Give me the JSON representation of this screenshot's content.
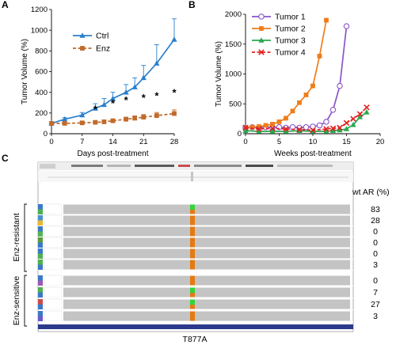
{
  "panel_labels": {
    "a": "A",
    "b": "B",
    "c": "C"
  },
  "chart_data": [
    {
      "type": "line",
      "panel": "A",
      "ylabel": "Tumor Volume (%)",
      "xlabel": "Days post-treatment",
      "xlim": [
        0,
        28
      ],
      "ylim": [
        0,
        1200
      ],
      "xticks": [
        0,
        7,
        14,
        21,
        28
      ],
      "yticks": [
        0,
        200,
        400,
        600,
        800,
        1000,
        1200
      ],
      "legend_position": "top-left",
      "series": [
        {
          "name": "Ctrl",
          "color": "#2b7fcb",
          "marker": "triangle",
          "dash": "solid",
          "x": [
            0,
            3,
            7,
            10,
            12,
            14,
            17,
            19,
            21,
            24,
            28
          ],
          "y": [
            100,
            140,
            180,
            245,
            280,
            340,
            400,
            450,
            540,
            680,
            910
          ],
          "err": [
            0,
            15,
            25,
            45,
            60,
            60,
            75,
            90,
            120,
            180,
            200
          ]
        },
        {
          "name": "Enz",
          "color": "#c06a2b",
          "marker": "square",
          "dash": "dashed",
          "x": [
            0,
            3,
            7,
            10,
            12,
            14,
            17,
            19,
            21,
            24,
            28
          ],
          "y": [
            100,
            100,
            105,
            110,
            115,
            125,
            140,
            150,
            160,
            175,
            195
          ],
          "err": [
            0,
            10,
            12,
            15,
            15,
            18,
            20,
            22,
            25,
            30,
            35
          ]
        }
      ],
      "annotations": {
        "significance_marker": "*",
        "x": [
          10,
          14,
          17,
          21,
          24,
          28
        ],
        "y": [
          240,
          300,
          330,
          350,
          370,
          400
        ]
      }
    },
    {
      "type": "line",
      "panel": "B",
      "ylabel": "Tumor Volume (%)",
      "xlabel": "Weeks post-treatment",
      "xlim": [
        0,
        20
      ],
      "ylim": [
        0,
        2000
      ],
      "xticks": [
        0,
        5,
        10,
        15,
        20
      ],
      "yticks": [
        0,
        500,
        1000,
        1500,
        2000
      ],
      "legend_position": "top-left",
      "series": [
        {
          "name": "Tumor 1",
          "color": "#8a55c7",
          "marker": "circle",
          "dash": "solid",
          "x": [
            0,
            1,
            2,
            3,
            4,
            5,
            6,
            7,
            8,
            9,
            10,
            11,
            12,
            13,
            14,
            15
          ],
          "y": [
            100,
            110,
            100,
            110,
            100,
            110,
            100,
            110,
            100,
            110,
            120,
            140,
            200,
            400,
            800,
            1800
          ]
        },
        {
          "name": "Tumor 2",
          "color": "#ee7d1a",
          "marker": "square",
          "dash": "solid",
          "x": [
            0,
            1,
            2,
            3,
            4,
            5,
            6,
            7,
            8,
            9,
            10,
            11,
            12
          ],
          "y": [
            100,
            110,
            120,
            140,
            160,
            200,
            260,
            380,
            520,
            650,
            800,
            1300,
            1900
          ]
        },
        {
          "name": "Tumor 3",
          "color": "#28a84e",
          "marker": "triangle",
          "dash": "solid",
          "x": [
            0,
            2,
            4,
            6,
            8,
            10,
            12,
            13,
            14,
            15,
            16,
            17,
            18
          ],
          "y": [
            50,
            40,
            40,
            40,
            50,
            40,
            40,
            50,
            60,
            80,
            150,
            280,
            360
          ]
        },
        {
          "name": "Tumor 4",
          "color": "#e0201f",
          "marker": "cross",
          "dash": "dashed",
          "x": [
            0,
            2,
            4,
            6,
            8,
            10,
            12,
            13,
            14,
            15,
            16,
            17,
            18
          ],
          "y": [
            100,
            80,
            90,
            80,
            70,
            60,
            80,
            90,
            100,
            180,
            250,
            330,
            440
          ]
        }
      ]
    }
  ],
  "igv_panel": {
    "groups": [
      {
        "label": "Enz-resistant",
        "rows": 6
      },
      {
        "label": "Enz-sensitive",
        "rows": 4
      }
    ],
    "column_header": "wt AR (%)",
    "wt_ar_values": [
      "83",
      "28",
      "0",
      "0",
      "0",
      "3",
      "0",
      "7",
      "27",
      "3"
    ],
    "mutation_label": "T877A"
  }
}
